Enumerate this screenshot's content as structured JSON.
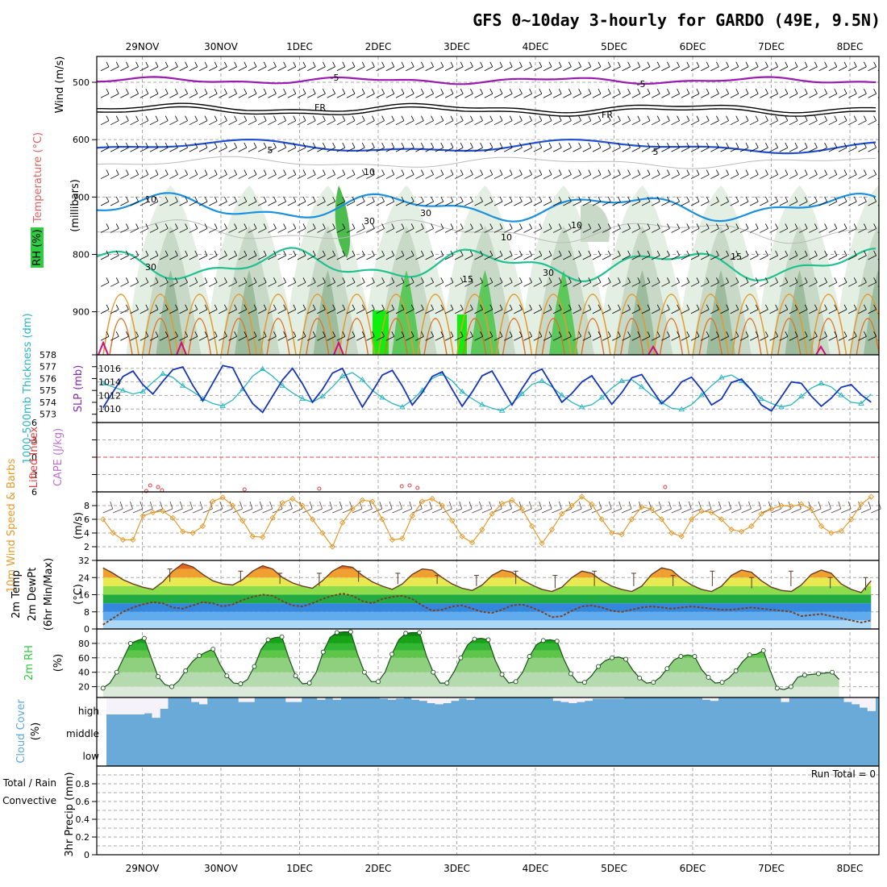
{
  "title": "GFS 0~10day 3-hourly for GARDO (49E, 9.5N)",
  "dates": [
    "29NOV",
    "30NOV",
    "1DEC",
    "2DEC",
    "3DEC",
    "4DEC",
    "5DEC",
    "6DEC",
    "7DEC",
    "8DEC"
  ],
  "chart_data": [
    {
      "type": "heatmap",
      "name_text": "RH (%) / Temperature (°C) / Wind (m/s)",
      "ylabel_rh": "RH (%)",
      "ylabel_temp": "Temperature (°C)",
      "ylabel_wind": "Wind (m/s)",
      "ylabel_axis": "(millibars)",
      "yticks": [
        500,
        600,
        700,
        800,
        900
      ],
      "ylim": [
        975,
        455
      ],
      "contour_labels": [
        "-5",
        "-5",
        "FR",
        "FR",
        "5",
        "5",
        "10",
        "10",
        "10",
        "15",
        "15",
        "30",
        "30",
        "30",
        "30",
        "10"
      ]
    },
    {
      "type": "line",
      "ylabel_thk": "1000-500mb Thickness (dm)",
      "ylabel_slp": "SLP (mb)",
      "yticks_left": [
        573,
        574,
        575,
        576,
        577,
        578
      ],
      "yticks_right": [
        1010,
        1012,
        1014,
        1016
      ],
      "slp": [
        1010.2,
        1012.5,
        1014.8,
        1015.6,
        1013.6,
        1012.2,
        1014.1,
        1015.8,
        1016.2,
        1013.5,
        1011.2,
        1013.8,
        1016.4,
        1016.1,
        1013.2,
        1010.8,
        1009.5,
        1011.9,
        1014.3,
        1016.0,
        1013.7,
        1011.0,
        1012.9,
        1015.3,
        1016.0,
        1013.0,
        1010.3,
        1012.6,
        1015.0,
        1015.7,
        1013.4,
        1010.6,
        1012.4,
        1014.8,
        1015.5,
        1012.9,
        1010.4,
        1012.5,
        1014.9,
        1015.6,
        1013.1,
        1010.6,
        1013.0,
        1015.2,
        1015.9,
        1013.5,
        1011.0,
        1012.3,
        1014.0,
        1014.9,
        1012.8,
        1010.7,
        1012.4,
        1014.6,
        1015.1,
        1012.9,
        1010.8,
        1012.1,
        1014.0,
        1014.7,
        1012.9,
        1010.6,
        1011.5,
        1013.9,
        1014.4,
        1012.8,
        1010.6,
        1009.7,
        1011.8,
        1014.0,
        1013.8,
        1011.9,
        1010.4,
        1011.6,
        1013.2,
        1013.6,
        1012.1,
        1011.0
      ],
      "thickness": [
        575.6,
        575.3,
        575.0,
        574.7,
        574.9,
        575.7,
        576.4,
        576.1,
        575.4,
        574.9,
        574.3,
        573.9,
        573.7,
        574.2,
        575.1,
        576.2,
        576.8,
        576.2,
        575.4,
        574.8,
        574.3,
        574.0,
        574.5,
        575.3,
        576.2,
        576.5,
        575.9,
        575.0,
        574.4,
        573.9,
        573.6,
        574.2,
        575.0,
        576.0,
        576.4,
        575.8,
        574.9,
        574.3,
        573.8,
        573.5,
        573.3,
        573.9,
        574.7,
        575.5,
        575.8,
        575.3,
        574.6,
        574.0,
        573.6,
        573.8,
        574.4,
        575.2,
        575.8,
        575.9,
        575.3,
        574.6,
        574.0,
        573.5,
        573.4,
        573.8,
        574.6,
        575.4,
        576.1,
        576.3,
        575.8,
        575.0,
        574.3,
        573.9,
        573.6,
        573.8,
        574.5,
        575.2,
        575.6,
        575.3,
        574.6,
        574.0,
        573.9,
        574.7
      ]
    },
    {
      "type": "line",
      "ylabel_li": "Lifted Index",
      "ylabel_cape": "CAPE (J/kg)",
      "yticks": [
        6,
        3,
        0,
        -3,
        -6
      ],
      "ylim": [
        -6,
        6
      ],
      "cape_points": [
        {
          "x": 1.05,
          "y": 0.1
        },
        {
          "x": 1.1,
          "y": 0.8
        },
        {
          "x": 1.2,
          "y": 0.6
        },
        {
          "x": 1.25,
          "y": 0.2
        },
        {
          "x": 2.3,
          "y": 0.3
        },
        {
          "x": 3.25,
          "y": 0.4
        },
        {
          "x": 4.3,
          "y": 0.7
        },
        {
          "x": 4.4,
          "y": 0.8
        },
        {
          "x": 4.5,
          "y": 0.5
        },
        {
          "x": 7.65,
          "y": 0.6
        }
      ]
    },
    {
      "type": "line",
      "ylabel_main": "10m Wind Speed & Barbs",
      "ylabel_unit": "(m/s)",
      "yticks": [
        2,
        4,
        6,
        8
      ],
      "ylim": [
        0,
        10
      ],
      "speed": [
        6.0,
        4.0,
        3.0,
        3.0,
        6.5,
        7.0,
        7.2,
        6.2,
        4.2,
        4.0,
        5.0,
        8.6,
        9.2,
        8.0,
        5.8,
        3.5,
        3.4,
        6.2,
        8.4,
        9.0,
        8.0,
        6.0,
        4.0,
        2.0,
        5.5,
        7.5,
        8.8,
        8.6,
        6.0,
        3.0,
        3.2,
        6.5,
        8.6,
        9.0,
        8.0,
        5.8,
        3.5,
        2.6,
        4.5,
        6.8,
        8.3,
        8.8,
        7.5,
        5.0,
        2.5,
        4.5,
        6.8,
        8.0,
        9.3,
        8.2,
        6.0,
        4.0,
        3.8,
        6.0,
        7.8,
        7.5,
        6.0,
        4.0,
        3.5,
        6.0,
        7.2,
        7.0,
        6.0,
        4.5,
        4.2,
        5.0,
        6.8,
        7.5,
        8.0,
        7.9,
        8.2,
        7.5,
        5.0,
        4.0,
        4.3,
        6.0,
        8.2,
        9.3
      ]
    },
    {
      "type": "area",
      "ylabel_main": "2m Temp 2m DewPt (6hr Min/Max)",
      "ylabel_unit": "(°C)",
      "yticks": [
        0,
        8,
        16,
        24,
        32
      ],
      "ylim": [
        0,
        32
      ],
      "temp": [
        28.5,
        26.0,
        23.0,
        21.0,
        19.5,
        18.5,
        22.0,
        27.0,
        30.5,
        29.0,
        25.5,
        22.5,
        21.0,
        20.5,
        23.0,
        27.0,
        29.5,
        28.0,
        24.0,
        21.5,
        20.0,
        19.0,
        22.5,
        27.0,
        29.5,
        28.8,
        25.0,
        22.0,
        20.0,
        18.5,
        21.0,
        25.5,
        28.0,
        27.5,
        24.0,
        21.0,
        19.0,
        18.0,
        20.5,
        25.0,
        27.5,
        26.5,
        23.0,
        20.5,
        18.5,
        17.5,
        19.5,
        24.0,
        27.0,
        26.0,
        22.5,
        20.0,
        18.5,
        17.5,
        20.0,
        25.5,
        28.5,
        27.5,
        23.5,
        20.5,
        18.5,
        17.5,
        20.0,
        25.0,
        27.5,
        26.5,
        22.5,
        19.5,
        18.0,
        17.5,
        20.5,
        25.5,
        27.5,
        26.0,
        21.0,
        18.5,
        17.0,
        22.5
      ],
      "dewpt": [
        2.0,
        5.0,
        8.0,
        10.0,
        11.5,
        12.5,
        12.0,
        10.0,
        9.5,
        11.0,
        12.5,
        12.0,
        10.5,
        11.5,
        13.5,
        15.0,
        16.0,
        15.5,
        13.0,
        11.0,
        10.5,
        12.0,
        14.0,
        15.5,
        16.5,
        15.5,
        13.0,
        12.0,
        14.0,
        15.0,
        15.5,
        14.0,
        11.0,
        8.5,
        9.0,
        10.5,
        11.0,
        9.5,
        8.0,
        7.5,
        9.0,
        11.0,
        11.5,
        10.0,
        8.0,
        5.5,
        6.0,
        8.5,
        10.5,
        11.0,
        10.0,
        8.5,
        8.0,
        9.0,
        10.0,
        10.5,
        10.0,
        9.5,
        10.0,
        10.5,
        10.0,
        9.5,
        9.0,
        9.0,
        9.5,
        10.0,
        9.5,
        9.0,
        8.5,
        8.0,
        6.0,
        6.5,
        7.0,
        6.0,
        5.0,
        4.0,
        3.0,
        4.0
      ],
      "minmax_marks": [
        {
          "x": 0.35,
          "lo": 22,
          "hi": 28
        },
        {
          "x": 1.25,
          "lo": 22,
          "hi": 27
        },
        {
          "x": 1.75,
          "lo": 21,
          "hi": 26
        },
        {
          "x": 2.25,
          "lo": 20,
          "hi": 26
        },
        {
          "x": 2.75,
          "lo": 22,
          "hi": 27
        },
        {
          "x": 3.25,
          "lo": 21,
          "hi": 26
        },
        {
          "x": 3.75,
          "lo": 21,
          "hi": 25
        },
        {
          "x": 4.25,
          "lo": 20,
          "hi": 25
        },
        {
          "x": 4.75,
          "lo": 21,
          "hi": 27
        },
        {
          "x": 5.25,
          "lo": 19,
          "hi": 25
        },
        {
          "x": 5.75,
          "lo": 20,
          "hi": 27
        },
        {
          "x": 6.25,
          "lo": 20,
          "hi": 26
        },
        {
          "x": 6.75,
          "lo": 20,
          "hi": 25
        },
        {
          "x": 7.25,
          "lo": 20,
          "hi": 27
        },
        {
          "x": 7.75,
          "lo": 19,
          "hi": 24
        },
        {
          "x": 8.25,
          "lo": 20,
          "hi": 27
        },
        {
          "x": 8.75,
          "lo": 19,
          "hi": 24
        },
        {
          "x": 9.2,
          "lo": 18,
          "hi": 24
        }
      ]
    },
    {
      "type": "area",
      "ylabel_main": "2m RH",
      "ylabel_unit": "(%)",
      "yticks": [
        20,
        40,
        60,
        80
      ],
      "ylim": [
        5,
        100
      ],
      "rh": [
        18,
        25,
        40,
        60,
        80,
        84,
        87,
        60,
        34,
        23,
        20,
        28,
        42,
        55,
        63,
        68,
        72,
        51,
        35,
        25,
        24,
        30,
        48,
        72,
        85,
        88,
        89,
        60,
        35,
        24,
        25,
        40,
        68,
        88,
        95,
        96,
        96,
        65,
        40,
        27,
        27,
        40,
        65,
        85,
        94,
        95,
        95,
        63,
        40,
        25,
        25,
        40,
        60,
        78,
        86,
        87,
        85,
        57,
        37,
        25,
        27,
        40,
        62,
        78,
        84,
        85,
        83,
        58,
        38,
        26,
        26,
        35,
        48,
        56,
        60,
        61,
        58,
        43,
        32,
        25,
        26,
        33,
        45,
        57,
        62,
        64,
        62,
        44,
        33,
        25,
        26,
        32,
        42,
        55,
        64,
        65,
        70,
        42,
        18,
        16,
        20,
        33,
        36,
        37,
        38,
        39,
        40,
        30
      ],
      "rh_x_step": 0.0875
    },
    {
      "type": "bar",
      "ylabel_main": "Cloud Cover",
      "ylabel_unit": "(%)",
      "levels": [
        "high",
        "middle",
        "low"
      ],
      "high": [
        75,
        75,
        75,
        75,
        75,
        70,
        90,
        50,
        0,
        0,
        0,
        20,
        30,
        0,
        0,
        0,
        0,
        20,
        20,
        0,
        0,
        0,
        0,
        20,
        20,
        0,
        0,
        10,
        0,
        10,
        0,
        0,
        0,
        0,
        0,
        5,
        10,
        5,
        0,
        10,
        15,
        25,
        30,
        25,
        15,
        5,
        10,
        0,
        0,
        0,
        0,
        0,
        0,
        0,
        0,
        0,
        0,
        15,
        20,
        25,
        20,
        15,
        5,
        5,
        5,
        5,
        0,
        0,
        0,
        0,
        0,
        0,
        0,
        0,
        0,
        0,
        10,
        15,
        0,
        0,
        0,
        0,
        0,
        0,
        0,
        0,
        20,
        0,
        0,
        0,
        0,
        0,
        0,
        0,
        20,
        30,
        45,
        60
      ],
      "high_step": 0.1
    },
    {
      "type": "bar",
      "ylabel_main": "Total / Rain",
      "ylabel_conv": "Convective",
      "ylabel_unit": "3hr Precip (mm)",
      "yticks": [
        0,
        0.2,
        0.4,
        0.6,
        0.8
      ],
      "ylim": [
        0,
        1.0
      ],
      "run_total": "Run Total = 0",
      "values": []
    }
  ]
}
